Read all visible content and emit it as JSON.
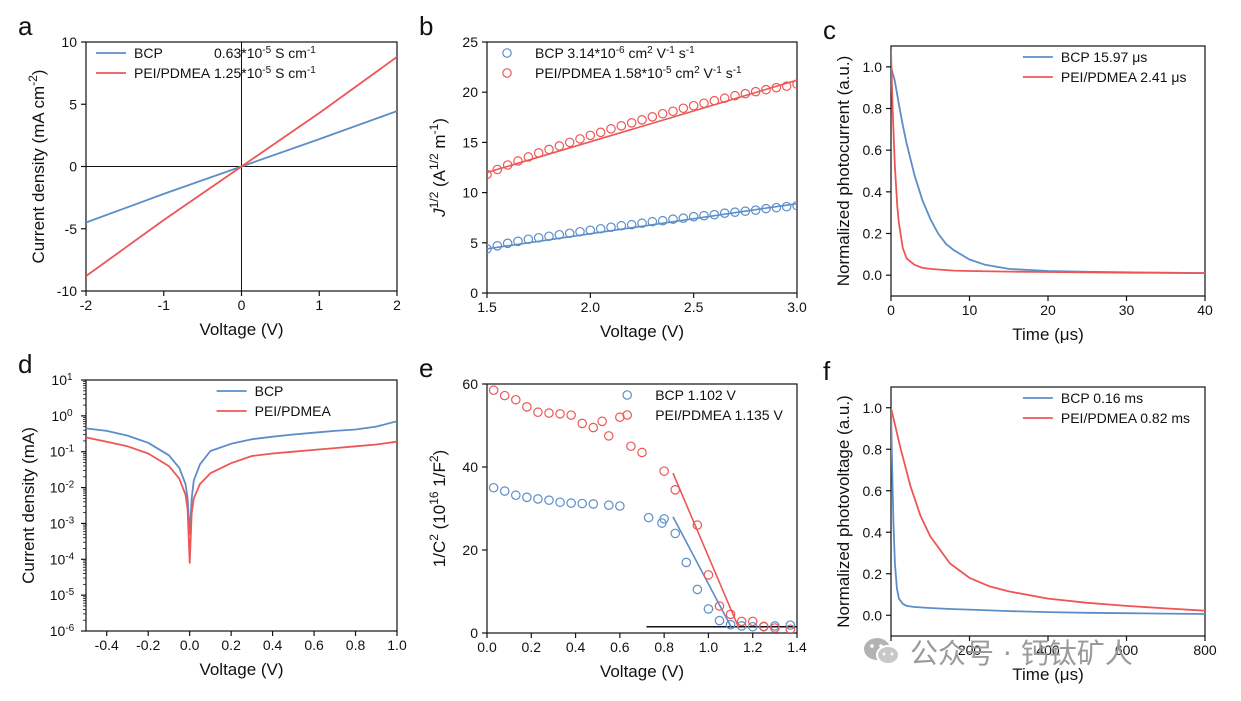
{
  "figure": {
    "watermark_text": "公众号 · 钙钛矿人",
    "watermark_icon": "wechat-icon"
  },
  "chart_data": [
    {
      "id": "a",
      "panel_label": "a",
      "type": "line",
      "xlabel": "Voltage (V)",
      "ylabel_parts": [
        [
          "Current density (mA cm",
          ""
        ],
        [
          "-2",
          "sup"
        ],
        [
          ")",
          ""
        ]
      ],
      "xlim": [
        -2,
        2
      ],
      "ylim": [
        -10,
        10
      ],
      "xticks": [
        -2,
        -1,
        0,
        1,
        2
      ],
      "yticks": [
        -10,
        -5,
        0,
        5,
        10
      ],
      "axis_lines": true,
      "legend": {
        "position": "top-left",
        "marker": "line"
      },
      "series": [
        {
          "name": "BCP",
          "label_parts": [
            [
              "BCP",
              ""
            ]
          ],
          "value_parts": [
            [
              "0.63*10",
              ""
            ],
            [
              "-5",
              "sup"
            ],
            [
              " S cm",
              ""
            ],
            [
              "-1",
              "sup"
            ]
          ],
          "color": "#5b8ec9",
          "style": "line",
          "x": [
            -2,
            -1,
            0,
            1,
            2
          ],
          "y": [
            -4.5,
            -2.2,
            0,
            2.2,
            4.45
          ]
        },
        {
          "name": "PEI/PDMEA",
          "label_parts": [
            [
              "PEI/PDMEA",
              ""
            ]
          ],
          "value_parts": [
            [
              "1.25*10",
              ""
            ],
            [
              "-5",
              "sup"
            ],
            [
              " S cm",
              ""
            ],
            [
              "-1",
              "sup"
            ]
          ],
          "color": "#ee5656",
          "style": "line",
          "x": [
            -2,
            -1,
            0,
            1,
            2
          ],
          "y": [
            -8.8,
            -4.3,
            0,
            4.3,
            8.8
          ]
        }
      ]
    },
    {
      "id": "b",
      "panel_label": "b",
      "type": "scatter",
      "xlabel": "Voltage (V)",
      "ylabel_parts": [
        [
          "J",
          "i"
        ],
        [
          "1/2",
          "sup"
        ],
        [
          " (A",
          ""
        ],
        [
          "1/2",
          "sup"
        ],
        [
          " m",
          ""
        ],
        [
          "-1",
          "sup"
        ],
        [
          ")",
          ""
        ]
      ],
      "xlim": [
        1.5,
        3.0
      ],
      "ylim": [
        0,
        25
      ],
      "xticks": [
        1.5,
        2.0,
        2.5,
        3.0
      ],
      "xtick_labels": [
        "1.5",
        "2.0",
        "2.5",
        "3.0"
      ],
      "yticks": [
        0,
        5,
        10,
        15,
        20,
        25
      ],
      "legend": {
        "position": "top-left",
        "marker": "circle"
      },
      "series": [
        {
          "name": "BCP",
          "label_parts": [
            [
              "BCP 3.14*10",
              ""
            ],
            [
              "-6",
              "sup"
            ],
            [
              " cm",
              ""
            ],
            [
              "2",
              "sup"
            ],
            [
              " V",
              ""
            ],
            [
              "-1",
              "sup"
            ],
            [
              " s",
              ""
            ],
            [
              "-1",
              "sup"
            ]
          ],
          "color": "#5b8ec9",
          "style": "markers+fit",
          "fit_x": [
            1.5,
            3.0
          ],
          "fit_y": [
            4.4,
            8.9
          ],
          "x": [
            1.5,
            1.55,
            1.6,
            1.65,
            1.7,
            1.75,
            1.8,
            1.85,
            1.9,
            1.95,
            2.0,
            2.05,
            2.1,
            2.15,
            2.2,
            2.25,
            2.3,
            2.35,
            2.4,
            2.45,
            2.5,
            2.55,
            2.6,
            2.65,
            2.7,
            2.75,
            2.8,
            2.85,
            2.9,
            2.95,
            3.0
          ],
          "y": [
            4.4,
            4.7,
            4.95,
            5.15,
            5.35,
            5.5,
            5.65,
            5.8,
            5.95,
            6.1,
            6.25,
            6.4,
            6.55,
            6.7,
            6.8,
            6.95,
            7.1,
            7.2,
            7.35,
            7.45,
            7.6,
            7.7,
            7.8,
            7.95,
            8.05,
            8.15,
            8.25,
            8.4,
            8.5,
            8.6,
            8.7
          ]
        },
        {
          "name": "PEI/PDMEA",
          "label_parts": [
            [
              "PEI/PDMEA 1.58*10",
              ""
            ],
            [
              "-5",
              "sup"
            ],
            [
              " cm",
              ""
            ],
            [
              "2",
              "sup"
            ],
            [
              " V",
              ""
            ],
            [
              "-1",
              "sup"
            ],
            [
              " s",
              ""
            ],
            [
              "-1",
              "sup"
            ]
          ],
          "color": "#ee5656",
          "style": "markers+fit",
          "fit_x": [
            1.5,
            3.0
          ],
          "fit_y": [
            12.0,
            21.2
          ],
          "x": [
            1.5,
            1.55,
            1.6,
            1.65,
            1.7,
            1.75,
            1.8,
            1.85,
            1.9,
            1.95,
            2.0,
            2.05,
            2.1,
            2.15,
            2.2,
            2.25,
            2.3,
            2.35,
            2.4,
            2.45,
            2.5,
            2.55,
            2.6,
            2.65,
            2.7,
            2.75,
            2.8,
            2.85,
            2.9,
            2.95,
            3.0
          ],
          "y": [
            11.8,
            12.3,
            12.75,
            13.15,
            13.55,
            13.95,
            14.3,
            14.65,
            15.0,
            15.35,
            15.7,
            16.0,
            16.35,
            16.65,
            16.95,
            17.25,
            17.55,
            17.85,
            18.1,
            18.4,
            18.65,
            18.9,
            19.15,
            19.4,
            19.65,
            19.85,
            20.05,
            20.25,
            20.45,
            20.6,
            20.8
          ]
        }
      ]
    },
    {
      "id": "c",
      "panel_label": "c",
      "type": "line",
      "xlabel": "Time (μs)",
      "ylabel_parts": [
        [
          "Normalized photocurrent (a.u.)",
          ""
        ]
      ],
      "xlim": [
        0,
        40
      ],
      "ylim": [
        -0.1,
        1.1
      ],
      "xticks": [
        0,
        10,
        20,
        30,
        40
      ],
      "yticks": [
        0.0,
        0.2,
        0.4,
        0.6,
        0.8,
        1.0
      ],
      "ytick_labels": [
        "0.0",
        "0.2",
        "0.4",
        "0.6",
        "0.8",
        "1.0"
      ],
      "legend": {
        "position": "top-right",
        "marker": "line"
      },
      "series": [
        {
          "name": "BCP",
          "label_parts": [
            [
              "BCP 15.97 μs",
              ""
            ]
          ],
          "color": "#5b8ec9",
          "style": "line",
          "x": [
            0,
            0.5,
            1,
            1.5,
            2,
            3,
            4,
            5,
            6,
            7,
            8,
            10,
            12,
            15,
            20,
            25,
            30,
            35,
            40
          ],
          "y": [
            1.0,
            0.93,
            0.82,
            0.72,
            0.63,
            0.48,
            0.36,
            0.27,
            0.2,
            0.15,
            0.12,
            0.075,
            0.05,
            0.03,
            0.02,
            0.016,
            0.014,
            0.012,
            0.01
          ]
        },
        {
          "name": "PEI/PDMEA",
          "label_parts": [
            [
              "PEI/PDMEA 2.41 μs",
              ""
            ]
          ],
          "color": "#ee5656",
          "style": "line",
          "x": [
            0,
            0.2,
            0.5,
            0.8,
            1,
            1.5,
            2,
            3,
            4,
            5,
            6,
            8,
            10,
            15,
            20,
            30,
            40
          ],
          "y": [
            1.08,
            0.8,
            0.52,
            0.33,
            0.25,
            0.13,
            0.08,
            0.05,
            0.035,
            0.03,
            0.027,
            0.022,
            0.02,
            0.017,
            0.015,
            0.012,
            0.01
          ]
        }
      ]
    },
    {
      "id": "d",
      "panel_label": "d",
      "type": "line",
      "yscale": "log",
      "xlabel": "Voltage (V)",
      "ylabel_parts": [
        [
          "Current density (mA)",
          ""
        ]
      ],
      "xlim": [
        -0.5,
        1.0
      ],
      "ylim": [
        -6,
        1
      ],
      "xticks": [
        -0.4,
        -0.2,
        0.0,
        0.2,
        0.4,
        0.6,
        0.8,
        1.0
      ],
      "xtick_labels": [
        "-0.4",
        "-0.2",
        "0.0",
        "0.2",
        "0.4",
        "0.6",
        "0.8",
        "1.0"
      ],
      "yticks": [
        -6,
        -5,
        -4,
        -3,
        -2,
        -1,
        0,
        1
      ],
      "ytick_exponents": [
        "-6",
        "-5",
        "-4",
        "-3",
        "-2",
        "-1",
        "0",
        "1"
      ],
      "ytick_base": "10",
      "legend": {
        "position": "top-right",
        "marker": "line"
      },
      "series": [
        {
          "name": "BCP",
          "label_parts": [
            [
              "BCP",
              ""
            ]
          ],
          "color": "#5b8ec9",
          "style": "line",
          "x": [
            -0.5,
            -0.4,
            -0.3,
            -0.2,
            -0.1,
            -0.05,
            -0.02,
            -0.01,
            0.0,
            0.01,
            0.02,
            0.05,
            0.1,
            0.2,
            0.3,
            0.4,
            0.5,
            0.6,
            0.7,
            0.8,
            0.9,
            1.0
          ],
          "y": [
            -0.35,
            -0.42,
            -0.55,
            -0.75,
            -1.1,
            -1.45,
            -1.9,
            -2.3,
            -3.3,
            -2.3,
            -1.8,
            -1.35,
            -0.98,
            -0.78,
            -0.65,
            -0.58,
            -0.52,
            -0.47,
            -0.42,
            -0.38,
            -0.3,
            -0.15
          ]
        },
        {
          "name": "PEI/PDMEA",
          "label_parts": [
            [
              "PEI/PDMEA",
              ""
            ]
          ],
          "color": "#ee5656",
          "style": "line",
          "x": [
            -0.5,
            -0.4,
            -0.3,
            -0.2,
            -0.1,
            -0.05,
            -0.02,
            -0.01,
            0.0,
            0.01,
            0.02,
            0.05,
            0.1,
            0.2,
            0.3,
            0.4,
            0.5,
            0.6,
            0.7,
            0.8,
            0.9,
            1.0
          ],
          "y": [
            -0.6,
            -0.72,
            -0.85,
            -1.05,
            -1.4,
            -1.75,
            -2.2,
            -2.6,
            -4.1,
            -2.7,
            -2.3,
            -1.9,
            -1.6,
            -1.32,
            -1.12,
            -1.05,
            -1.0,
            -0.95,
            -0.9,
            -0.85,
            -0.8,
            -0.72
          ]
        }
      ]
    },
    {
      "id": "e",
      "panel_label": "e",
      "type": "scatter",
      "xlabel": "Voltage (V)",
      "ylabel_parts": [
        [
          "1/C",
          ""
        ],
        [
          "2",
          "sup"
        ],
        [
          " (10",
          ""
        ],
        [
          "16",
          "sup"
        ],
        [
          " 1/F",
          ""
        ],
        [
          "2",
          "sup"
        ],
        [
          ")",
          ""
        ]
      ],
      "xlim": [
        0.0,
        1.4
      ],
      "ylim": [
        0,
        60
      ],
      "xticks": [
        0.0,
        0.2,
        0.4,
        0.6,
        0.8,
        1.0,
        1.2,
        1.4
      ],
      "xtick_labels": [
        "0.0",
        "0.2",
        "0.4",
        "0.6",
        "0.8",
        "1.0",
        "1.2",
        "1.4"
      ],
      "yticks": [
        0,
        20,
        40,
        60
      ],
      "legend": {
        "position": "top-right",
        "marker": "circle"
      },
      "baseline": {
        "x": [
          0.72,
          1.4
        ],
        "y": [
          1.5,
          1.5
        ],
        "color": "#111111"
      },
      "series": [
        {
          "name": "BCP",
          "label_parts": [
            [
              "BCP 1.102 V",
              ""
            ]
          ],
          "color": "#5b8ec9",
          "style": "markers+fit",
          "fit_x": [
            0.84,
            1.102
          ],
          "fit_y": [
            28,
            1.5
          ],
          "x": [
            0.03,
            0.08,
            0.13,
            0.18,
            0.23,
            0.28,
            0.33,
            0.38,
            0.43,
            0.48,
            0.55,
            0.6,
            0.73,
            0.79,
            0.8,
            0.85,
            0.9,
            0.95,
            1.0,
            1.05,
            1.1,
            1.15,
            1.2,
            1.25,
            1.3,
            1.37
          ],
          "y": [
            35,
            34.2,
            33.2,
            32.7,
            32.3,
            32.0,
            31.5,
            31.3,
            31.2,
            31.1,
            30.8,
            30.6,
            27.8,
            26.5,
            27.5,
            24.0,
            17.0,
            10.5,
            5.8,
            3.0,
            2.0,
            1.7,
            1.5,
            1.5,
            1.7,
            1.9
          ]
        },
        {
          "name": "PEI/PDMEA",
          "label_parts": [
            [
              "PEI/PDMEA 1.135 V",
              ""
            ]
          ],
          "color": "#ee5656",
          "style": "markers+fit",
          "fit_x": [
            0.84,
            1.135
          ],
          "fit_y": [
            38.5,
            1.5
          ],
          "x": [
            0.03,
            0.08,
            0.13,
            0.18,
            0.23,
            0.28,
            0.33,
            0.38,
            0.43,
            0.48,
            0.52,
            0.55,
            0.6,
            0.65,
            0.7,
            0.8,
            0.85,
            0.95,
            1.0,
            1.05,
            1.1,
            1.15,
            1.2,
            1.25,
            1.3,
            1.37
          ],
          "y": [
            58.5,
            57.2,
            56.2,
            54.5,
            53.2,
            53.0,
            52.8,
            52.5,
            50.5,
            49.5,
            51.0,
            47.5,
            52.0,
            45.0,
            43.5,
            39.0,
            34.5,
            26.0,
            14.0,
            6.5,
            4.5,
            2.8,
            2.8,
            1.6,
            1.2,
            0.9
          ]
        }
      ]
    },
    {
      "id": "f",
      "panel_label": "f",
      "type": "line",
      "xlabel": "Time (μs)",
      "ylabel_parts": [
        [
          "Normalized photovoltage (a.u.)",
          ""
        ]
      ],
      "xlim": [
        0,
        800
      ],
      "ylim": [
        -0.1,
        1.1
      ],
      "xticks": [
        0,
        200,
        400,
        600,
        800
      ],
      "yticks": [
        0.0,
        0.2,
        0.4,
        0.6,
        0.8,
        1.0
      ],
      "ytick_labels": [
        "0.0",
        "0.2",
        "0.4",
        "0.6",
        "0.8",
        "1.0"
      ],
      "legend": {
        "position": "top-right",
        "marker": "line"
      },
      "series": [
        {
          "name": "BCP",
          "label_parts": [
            [
              "BCP 0.16 ms",
              ""
            ]
          ],
          "color": "#5b8ec9",
          "style": "line",
          "x": [
            0,
            3,
            6,
            10,
            15,
            20,
            30,
            40,
            60,
            100,
            150,
            200,
            300,
            400,
            500,
            600,
            700,
            800
          ],
          "y": [
            1.0,
            0.7,
            0.45,
            0.25,
            0.13,
            0.08,
            0.055,
            0.045,
            0.04,
            0.035,
            0.03,
            0.027,
            0.02,
            0.015,
            0.012,
            0.01,
            0.008,
            0.006
          ]
        },
        {
          "name": "PEI/PDMEA",
          "label_parts": [
            [
              "PEI/PDMEA 0.82 ms",
              ""
            ]
          ],
          "color": "#ee5656",
          "style": "line",
          "x": [
            0,
            10,
            25,
            50,
            75,
            100,
            150,
            200,
            250,
            300,
            400,
            500,
            600,
            700,
            800
          ],
          "y": [
            1.0,
            0.92,
            0.8,
            0.62,
            0.48,
            0.38,
            0.25,
            0.18,
            0.14,
            0.115,
            0.08,
            0.06,
            0.045,
            0.033,
            0.022
          ]
        }
      ]
    }
  ]
}
